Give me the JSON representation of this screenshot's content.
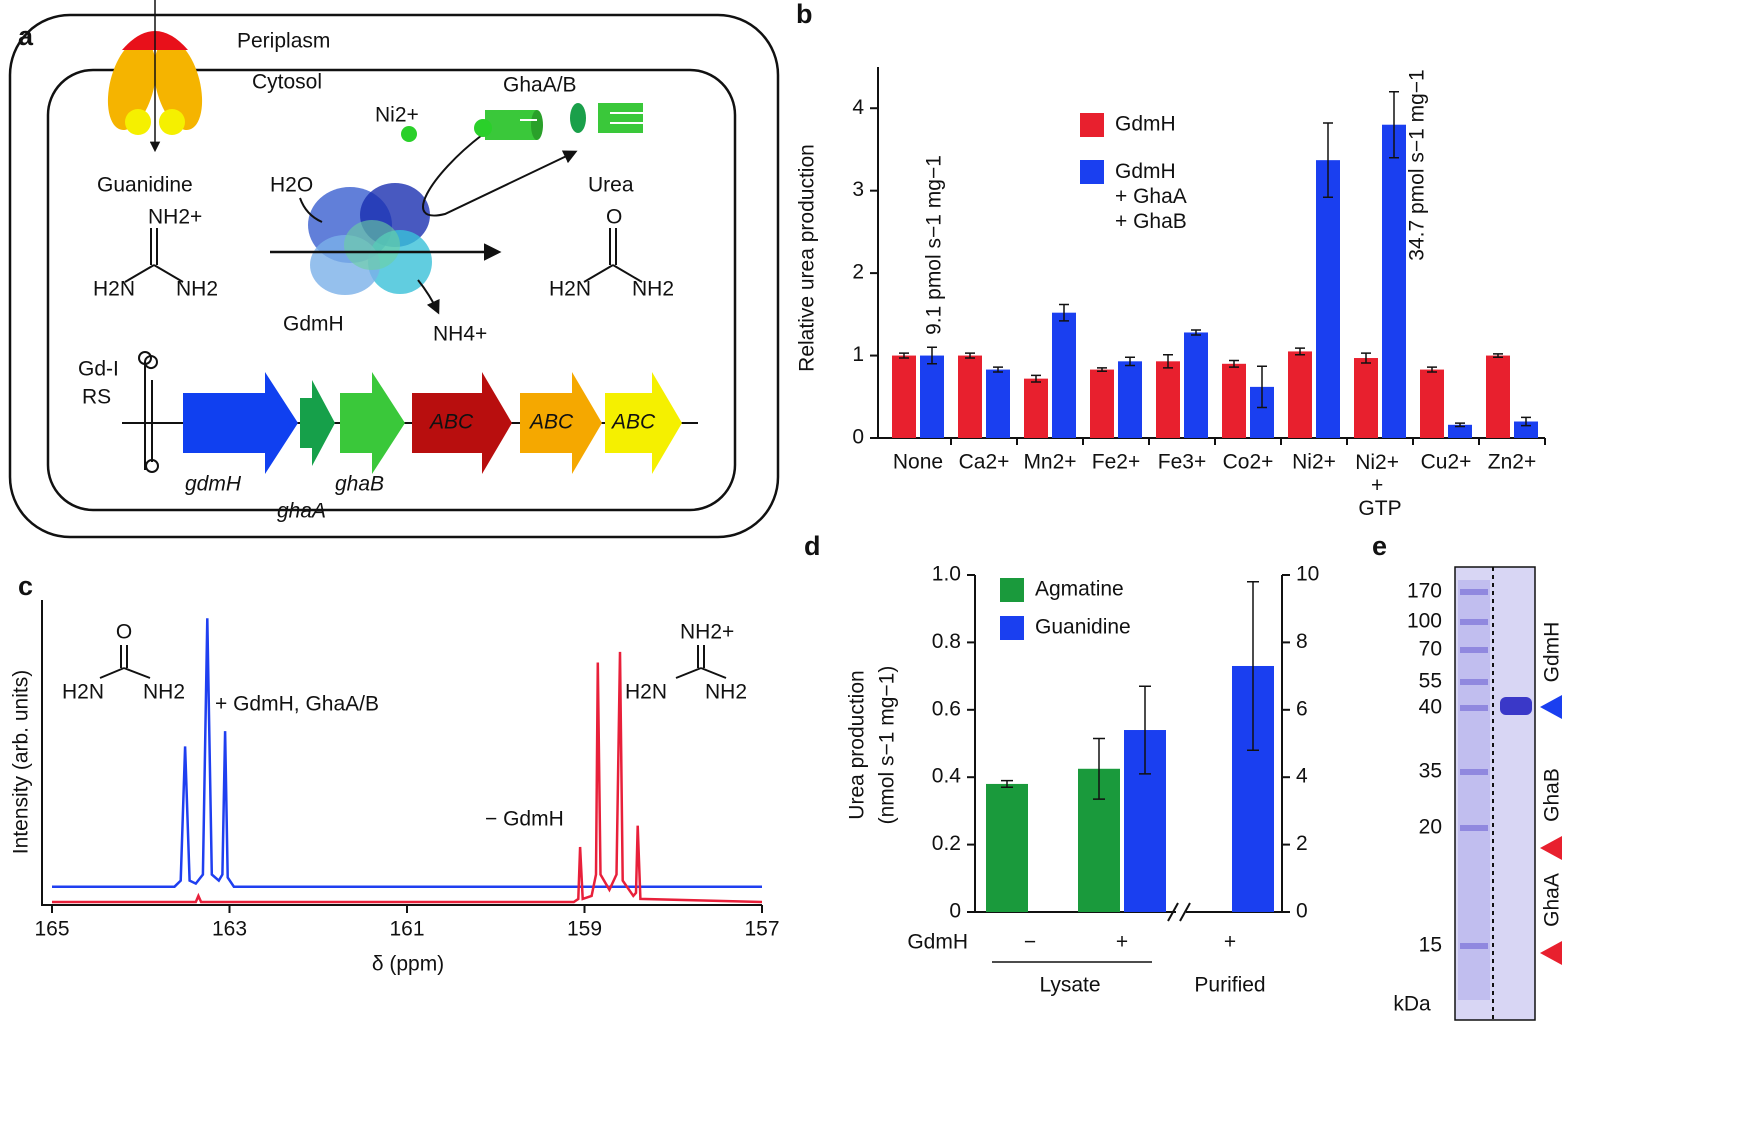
{
  "panels": [
    "a",
    "b",
    "c",
    "d",
    "e"
  ],
  "diagram": {
    "periplasm": "Periplasm",
    "cytosol": "Cytosol",
    "ghaab": "GhaA/B",
    "nickel": "Ni2+",
    "guanidine": "Guanidine",
    "water": "H2O",
    "urea": "Urea",
    "enzyme": "GdmH",
    "ammonium": "NH4+",
    "riboswitch": [
      "Gd-I",
      "RS"
    ],
    "guanidine_structure": [
      "NH2+",
      "H2N",
      "NH2"
    ],
    "urea_structure": [
      "O",
      "H2N",
      "NH2"
    ],
    "genes": [
      "gdmH",
      "ghaA",
      "ghaB"
    ],
    "transporters": [
      "ABC",
      "ABC",
      "ABC"
    ]
  },
  "chart_data": [
    {
      "type": "bar",
      "y_label": "Relative urea production",
      "categories": [
        "None",
        "Ca2+",
        "Mn2+",
        "Fe2+",
        "Fe3+",
        "Co2+",
        "Ni2+",
        "Ni2+ + GTP",
        "Cu2+",
        "Zn2+"
      ],
      "series": [
        {
          "name": "GdmH",
          "color": "#e8202e",
          "values": [
            1.0,
            1.0,
            0.72,
            0.83,
            0.93,
            0.9,
            1.05,
            0.97,
            0.83,
            1.0
          ],
          "errors": [
            0.03,
            0.03,
            0.04,
            0.02,
            0.08,
            0.04,
            0.04,
            0.06,
            0.03,
            0.02
          ]
        },
        {
          "name": "GdmH + GhaA + GhaB",
          "color": "#1a3ff0",
          "values": [
            1.0,
            0.83,
            1.52,
            0.93,
            1.28,
            0.62,
            3.37,
            3.8,
            0.16,
            0.2
          ],
          "errors": [
            0.1,
            0.03,
            0.1,
            0.05,
            0.03,
            0.25,
            0.45,
            0.4,
            0.02,
            0.05
          ]
        }
      ],
      "ylim": [
        0,
        4.5
      ],
      "yticks": [
        0,
        1,
        2,
        3,
        4
      ],
      "annotations": [
        "9.1 pmol s−1 mg−1",
        "34.7 pmol s−1 mg−1"
      ]
    },
    {
      "type": "line",
      "x_label": "δ (ppm)",
      "y_label": "Intensity (arb. units)",
      "xlim": [
        165,
        157
      ],
      "xticks": [
        165,
        163,
        161,
        159,
        157
      ],
      "ylim": [
        0,
        100
      ],
      "series": [
        {
          "name": "+ GdmH, GhaA/B",
          "color": "#1f3ff0",
          "x": [
            165,
            163.62,
            163.55,
            163.5,
            163.45,
            163.38,
            163.3,
            163.25,
            163.2,
            163.12,
            163.08,
            163.05,
            163.02,
            162.95,
            157
          ],
          "values": [
            6,
            6,
            8,
            52,
            8,
            7,
            10,
            94,
            10,
            8,
            10,
            57,
            9,
            6,
            6
          ]
        },
        {
          "name": "− GdmH",
          "color": "#e8203a",
          "x": [
            165,
            163.38,
            163.35,
            163.32,
            159.12,
            159.07,
            159.05,
            159.02,
            158.92,
            158.87,
            158.85,
            158.82,
            158.72,
            158.64,
            158.6,
            158.57,
            158.45,
            158.42,
            158.4,
            158.37,
            157
          ],
          "values": [
            1,
            1,
            3,
            1,
            1,
            2,
            19,
            2,
            3,
            10,
            79.5,
            10,
            5,
            10,
            83,
            8,
            3,
            4,
            26,
            2,
            1
          ]
        }
      ],
      "annotations": {
        "urea": [
          "O",
          "H2N",
          "NH2"
        ],
        "guanidine": [
          "NH2+",
          "H2N",
          "NH2"
        ]
      }
    },
    {
      "type": "bar",
      "y_label": [
        "Urea production",
        "(nmol s−1 mg−1)"
      ],
      "row_label": "GdmH",
      "categories": [
        "−",
        "+",
        "+"
      ],
      "group_labels": [
        "Lysate",
        "Purified"
      ],
      "series": [
        {
          "name": "Agmatine",
          "color": "#1a9a3c",
          "values": [
            0.38,
            0.425,
            0
          ],
          "errors": [
            0.01,
            0.09,
            0
          ]
        },
        {
          "name": "Guanidine",
          "color": "#1a3ff0",
          "axis": "y2",
          "values": [
            0,
            5.4,
            7.3
          ],
          "errors": [
            0,
            1.3,
            2.5
          ]
        }
      ],
      "ylim": [
        0,
        1
      ],
      "yticks": [
        0,
        {
          "value": 0.2,
          "label": "0.2"
        },
        {
          "value": 0.4,
          "label": "0.4"
        },
        {
          "value": 0.6,
          "label": "0.6"
        },
        {
          "value": 0.8,
          "label": "0.8"
        },
        {
          "value": 1,
          "label": "1.0"
        }
      ],
      "y2lim": [
        0,
        10
      ],
      "y2ticks": [
        0,
        2,
        4,
        6,
        8,
        10
      ]
    }
  ],
  "gel": {
    "unit": "kDa",
    "ticks": [
      170,
      100,
      70,
      55,
      40,
      35,
      20,
      15
    ],
    "markers": [
      "GdmH",
      "GhaB",
      "GhaA"
    ]
  }
}
